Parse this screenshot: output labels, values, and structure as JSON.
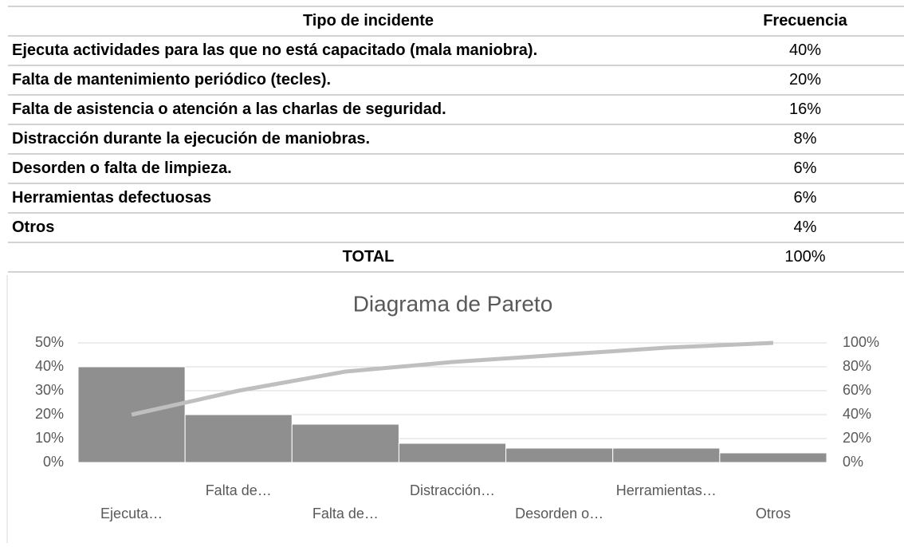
{
  "table": {
    "header": [
      "Tipo de incidente",
      "Frecuencia"
    ],
    "rows": [
      [
        "Ejecuta actividades para las que no está capacitado (mala maniobra).",
        "40%"
      ],
      [
        "Falta de mantenimiento periódico (tecles).",
        "20%"
      ],
      [
        "Falta de asistencia o atención a las charlas de seguridad.",
        "16%"
      ],
      [
        "Distracción durante la ejecución de maniobras.",
        "8%"
      ],
      [
        "Desorden o falta de limpieza.",
        "6%"
      ],
      [
        "Herramientas defectuosas",
        "6%"
      ],
      [
        "Otros",
        "4%"
      ]
    ],
    "total": [
      "TOTAL",
      "100%"
    ]
  },
  "chart_data": {
    "type": "pareto",
    "title": "Diagrama de Pareto",
    "categories": [
      "Ejecuta…",
      "Falta de…",
      "Falta de…",
      "Distracción…",
      "Desorden o…",
      "Herramientas…",
      "Otros"
    ],
    "series": [
      {
        "type": "bar",
        "color": "#8f8f8f",
        "values": [
          40,
          20,
          16,
          8,
          6,
          6,
          4
        ]
      },
      {
        "type": "line",
        "axis": "y2",
        "color": "#bfbfbf",
        "values": [
          40,
          60,
          76,
          84,
          90,
          96,
          100
        ]
      }
    ],
    "ylim": [
      0,
      50
    ],
    "yticks": [
      {
        "value": 0,
        "label": "0%"
      },
      {
        "value": 10,
        "label": "10%"
      },
      {
        "value": 20,
        "label": "20%"
      },
      {
        "value": 30,
        "label": "30%"
      },
      {
        "value": 40,
        "label": "40%"
      },
      {
        "value": 50,
        "label": "50%"
      }
    ],
    "y2lim": [
      0,
      100
    ],
    "y2ticks": [
      {
        "value": 0,
        "label": "0%"
      },
      {
        "value": 20,
        "label": "20%"
      },
      {
        "value": 40,
        "label": "40%"
      },
      {
        "value": 60,
        "label": "60%"
      },
      {
        "value": 80,
        "label": "80%"
      },
      {
        "value": 100,
        "label": "100%"
      }
    ],
    "grid": true
  }
}
